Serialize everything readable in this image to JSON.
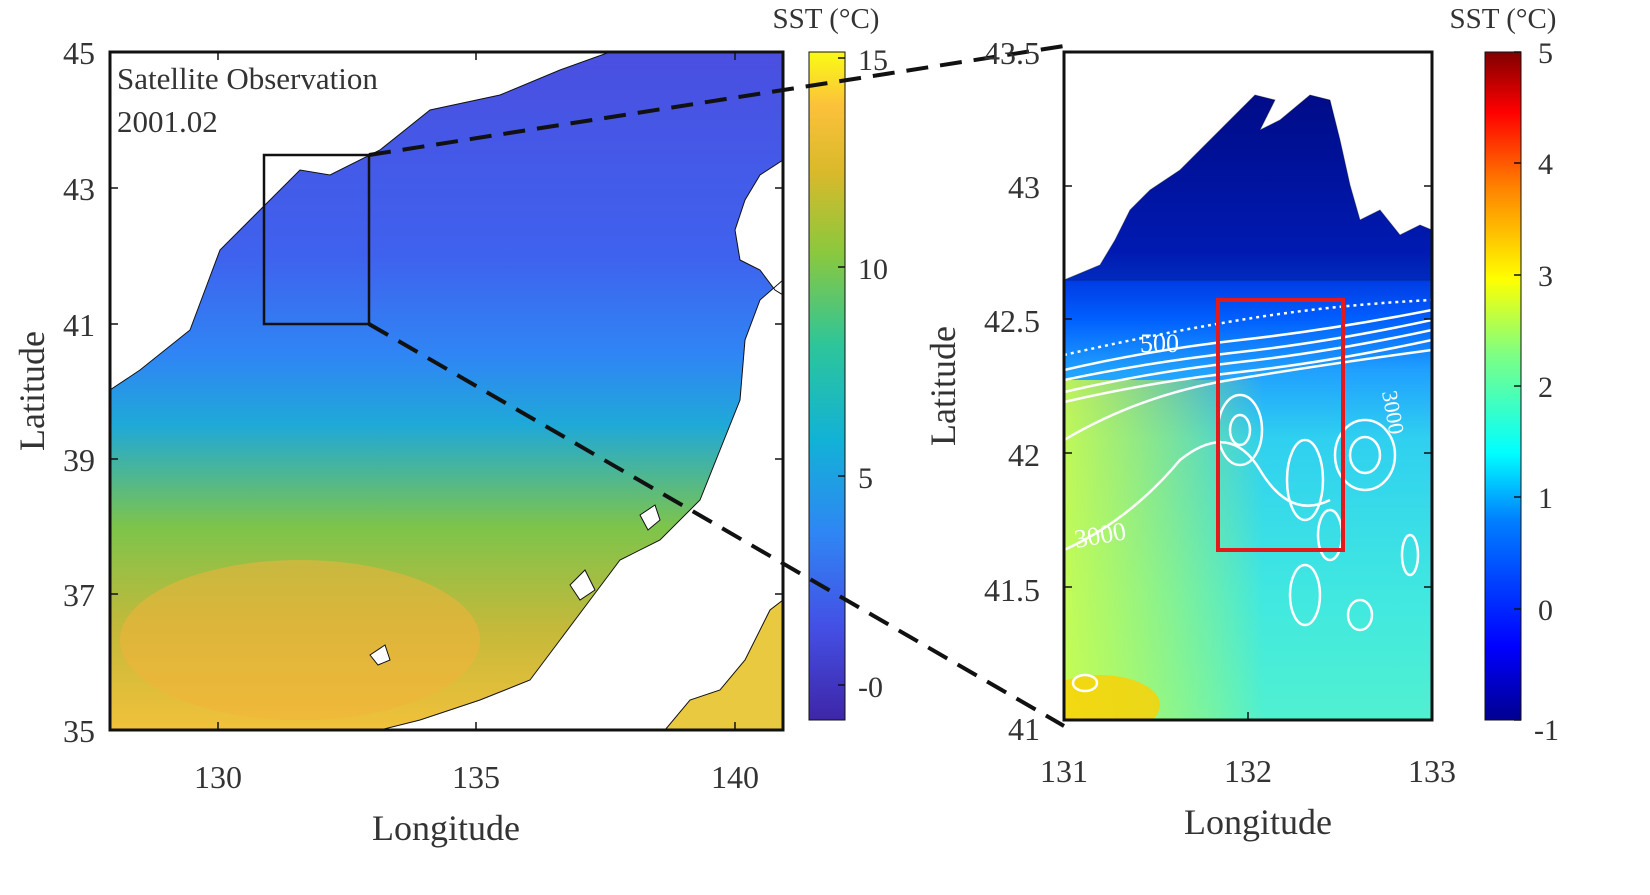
{
  "left_panel": {
    "title": "Satellite Observation",
    "date": "2001.02",
    "xlabel": "Longitude",
    "ylabel": "Latitude",
    "xticks": [
      "130",
      "135",
      "140"
    ],
    "yticks": [
      "35",
      "37",
      "39",
      "41",
      "43",
      "45"
    ],
    "lon_range": [
      128,
      141
    ],
    "lat_range": [
      35,
      45
    ],
    "zoom_box": {
      "lon": [
        131,
        133
      ],
      "lat": [
        41,
        43.5
      ]
    },
    "colorbar": {
      "label": "SST (°C)",
      "ticks": [
        "-0",
        "5",
        "10",
        "15"
      ],
      "range": [
        -1,
        15
      ],
      "colormap": [
        "#3e26a8",
        "#4450e5",
        "#2f86f4",
        "#12b2d6",
        "#2dc59a",
        "#8bc83d",
        "#d9b92b",
        "#fcc13a",
        "#f9fb15"
      ]
    }
  },
  "right_panel": {
    "xlabel": "Longitude",
    "ylabel": "Latitude",
    "xticks": [
      "131",
      "132",
      "133"
    ],
    "yticks": [
      "41",
      "41.5",
      "42",
      "42.5",
      "43",
      "43.5"
    ],
    "lon_range": [
      131,
      133
    ],
    "lat_range": [
      41,
      43.5
    ],
    "contour_labels": [
      "500",
      "3000",
      "3000"
    ],
    "highlight_box": {
      "lon": [
        131.78,
        132.44
      ],
      "lat": [
        41.65,
        42.57
      ],
      "color": "#e31a1c"
    },
    "colorbar": {
      "label": "SST (°C)",
      "ticks": [
        "-1",
        "0",
        "1",
        "2",
        "3",
        "4",
        "5"
      ],
      "range": [
        -1,
        5
      ],
      "colormap": [
        "#00008f",
        "#0000ff",
        "#0080ff",
        "#00ffff",
        "#80ff80",
        "#ffff00",
        "#ff8000",
        "#ff0000",
        "#800000"
      ]
    }
  }
}
